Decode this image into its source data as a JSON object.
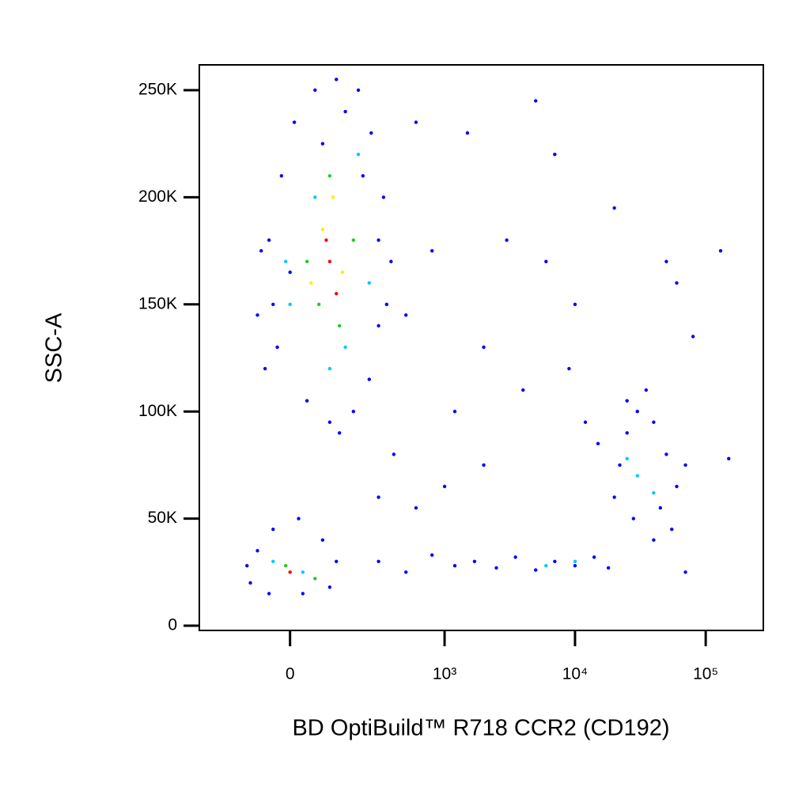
{
  "chart_data": {
    "type": "scatter",
    "xlabel": "BD OptiBuild™ R718 CCR2 (CD192)",
    "ylabel": "SSC-A",
    "xscale": "arcsinh",
    "xscale_cofactor": 132,
    "xlim": [
      -313,
      276000
    ],
    "xticks": [
      0,
      {
        "value": 1000,
        "label": "10³"
      },
      {
        "value": 10000,
        "label": "10⁴"
      },
      {
        "value": 100000,
        "label": "10⁵"
      }
    ],
    "ylim": [
      -2200,
      261800
    ],
    "yticks": [
      0,
      {
        "value": 50000,
        "label": "50K"
      },
      {
        "value": 100000,
        "label": "100K"
      },
      {
        "value": 150000,
        "label": "150K"
      },
      {
        "value": 200000,
        "label": "200K"
      },
      {
        "value": 250000,
        "label": "250K"
      }
    ],
    "series": [
      {
        "color": "#0000ff",
        "x": [
          -60,
          -40,
          -50,
          -20,
          10,
          60,
          120,
          200,
          260,
          330,
          380,
          300,
          250,
          180,
          100,
          40,
          -30,
          0,
          80,
          150,
          220,
          300,
          350,
          -70,
          -80,
          130,
          -100,
          -80,
          -40,
          20,
          80,
          120,
          100,
          30,
          -50,
          -110,
          300,
          500,
          800,
          1200,
          1700,
          2500,
          3500,
          5000,
          7000,
          10000,
          14000,
          18000,
          600,
          1000,
          2000,
          400,
          300,
          20000,
          25000,
          30000,
          40000,
          50000,
          60000,
          55000,
          40000,
          28000,
          22000,
          35000,
          70000,
          45000,
          15000,
          12000,
          25000,
          600,
          1500,
          5000,
          7000,
          3000,
          20000,
          800,
          2000,
          10000,
          50000,
          130000,
          80000,
          60000,
          6000,
          1200,
          4000,
          9000,
          150000,
          70000,
          500
        ],
        "values": [
          120000,
          150000,
          180000,
          210000,
          235000,
          250000,
          255000,
          250000,
          230000,
          200000,
          170000,
          140000,
          115000,
          100000,
          95000,
          105000,
          130000,
          165000,
          225000,
          240000,
          210000,
          180000,
          150000,
          175000,
          145000,
          90000,
          20000,
          35000,
          45000,
          50000,
          40000,
          30000,
          18000,
          15000,
          15000,
          28000,
          30000,
          25000,
          33000,
          28000,
          30000,
          27000,
          32000,
          26000,
          30000,
          28000,
          32000,
          27000,
          55000,
          65000,
          75000,
          80000,
          60000,
          60000,
          90000,
          100000,
          95000,
          80000,
          65000,
          45000,
          40000,
          50000,
          75000,
          110000,
          75000,
          55000,
          85000,
          95000,
          105000,
          235000,
          230000,
          245000,
          220000,
          180000,
          195000,
          175000,
          130000,
          150000,
          170000,
          175000,
          135000,
          160000,
          170000,
          100000,
          110000,
          120000,
          78000,
          25000,
          145000
        ]
      },
      {
        "color": "#00c8ff",
        "x": [
          0,
          60,
          150,
          200,
          -10,
          100,
          250,
          30,
          -40,
          6000,
          10000,
          30000,
          40000,
          25000
        ],
        "values": [
          150000,
          200000,
          130000,
          220000,
          170000,
          120000,
          160000,
          25000,
          30000,
          28000,
          30000,
          70000,
          62000,
          78000
        ]
      },
      {
        "color": "#22cc22",
        "x": [
          40,
          100,
          180,
          130,
          70,
          -10,
          60
        ],
        "values": [
          170000,
          210000,
          180000,
          140000,
          150000,
          28000,
          22000
        ]
      },
      {
        "color": "#ffee00",
        "x": [
          80,
          140,
          110,
          50
        ],
        "values": [
          185000,
          165000,
          200000,
          160000
        ]
      },
      {
        "color": "#ff0000",
        "x": [
          100,
          120,
          90,
          0
        ],
        "values": [
          170000,
          155000,
          180000,
          25000
        ]
      }
    ]
  }
}
